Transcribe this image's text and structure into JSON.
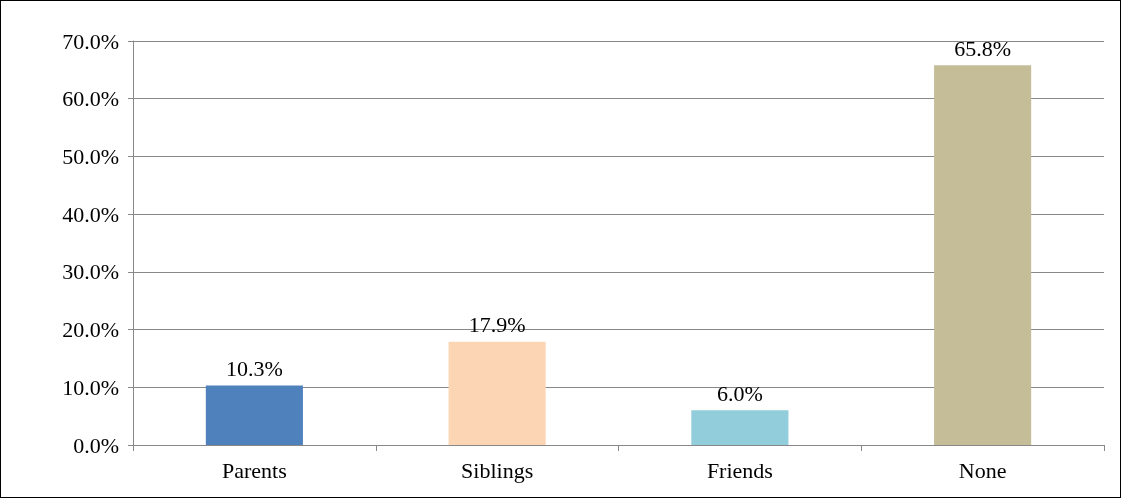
{
  "chart_data": {
    "type": "bar",
    "categories": [
      "Parents",
      "Siblings",
      "Friends",
      "None"
    ],
    "values": [
      10.3,
      17.9,
      6.0,
      65.8
    ],
    "colors": [
      "#4f81bd",
      "#fcd5b5",
      "#92cddc",
      "#c4bd97"
    ],
    "value_labels": [
      "10.3%",
      "17.9%",
      "6.0%",
      "65.8%"
    ],
    "ylim": [
      0,
      70
    ],
    "yticks": [
      {
        "value": 0,
        "label": "0.0%"
      },
      {
        "value": 10,
        "label": "10.0%"
      },
      {
        "value": 20,
        "label": "20.0%"
      },
      {
        "value": 30,
        "label": "30.0%"
      },
      {
        "value": 40,
        "label": "40.0%"
      },
      {
        "value": 50,
        "label": "50.0%"
      },
      {
        "value": 60,
        "label": "60.0%"
      },
      {
        "value": 70,
        "label": "70.0%"
      }
    ],
    "grid": "y"
  }
}
